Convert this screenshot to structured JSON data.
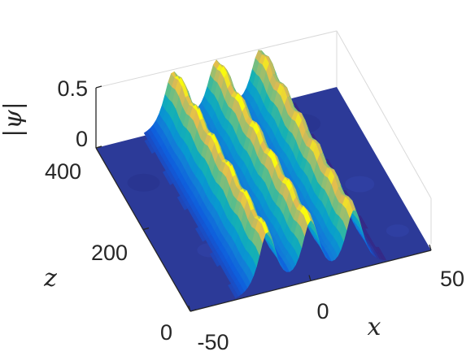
{
  "chart_data": {
    "type": "surface3d",
    "colormap": "parula",
    "xlabel": "x",
    "ylabel": "z",
    "zlabel": "|ψ|",
    "xlim": [
      -50,
      50
    ],
    "ylim": [
      0,
      400
    ],
    "zlim": [
      0,
      0.5
    ],
    "x_ticks": [
      "-50",
      "0",
      "50"
    ],
    "y_ticks": [
      "0",
      "200",
      "400"
    ],
    "z_ticks": [
      "0",
      "0.5"
    ],
    "grid": false,
    "peak_amplitude": 0.5,
    "peaks": [
      {
        "x_center": -18
      },
      {
        "x_center": 0
      },
      {
        "x_center": 18
      }
    ]
  }
}
